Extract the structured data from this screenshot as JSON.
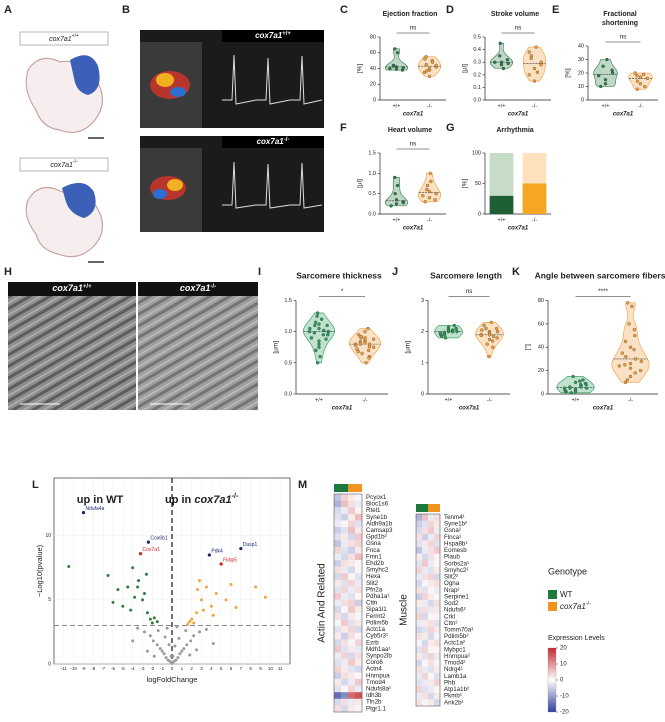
{
  "figure": {
    "panel_labels": [
      "A",
      "B",
      "C",
      "D",
      "E",
      "F",
      "G",
      "H",
      "I",
      "J",
      "K",
      "L",
      "M"
    ],
    "genotypes": [
      {
        "gene": "cox7a1",
        "sup": "+/+"
      },
      {
        "gene": "cox7a1",
        "sup": "-/-"
      }
    ],
    "heatmap_legend": {
      "title": "Genotype",
      "items": [
        {
          "name": "WT",
          "color": "#1e7a3c"
        },
        {
          "name": {
            "gene": "cox7a1",
            "sup": "-/-"
          },
          "color": "#f0941f"
        }
      ],
      "colorbar": {
        "title": "Expression Levels",
        "lim": [
          -20,
          20
        ],
        "ticks": [
          20,
          10,
          0,
          -10,
          -20
        ]
      }
    }
  },
  "chart_data": [
    {
      "type": "violin",
      "title": "Ejection fraction",
      "ylabel": "[%]",
      "xlabel": "cox7a1",
      "annotation": "ns",
      "categories": [
        "+/+",
        "-/-"
      ],
      "ylim": [
        0,
        80
      ],
      "yticks": [
        0,
        20,
        40,
        60,
        80
      ],
      "groups": [
        {
          "color": "#2a7a45",
          "values": [
            40,
            42,
            38,
            44,
            60,
            65,
            39,
            41,
            43
          ]
        },
        {
          "color": "#f29d38",
          "values": [
            35,
            38,
            42,
            45,
            50,
            55,
            40,
            44,
            37,
            48,
            52,
            30
          ]
        }
      ]
    },
    {
      "type": "violin",
      "title": "Stroke volume",
      "ylabel": "[µl]",
      "xlabel": "cox7a1",
      "annotation": "ns",
      "categories": [
        "+/+",
        "-/-"
      ],
      "ylim": [
        0,
        0.5
      ],
      "yticks": [
        {
          "value": 0,
          "label": "0.0"
        },
        0.1,
        0.2,
        0.3,
        0.4,
        0.5
      ],
      "groups": [
        {
          "color": "#2a7a45",
          "values": [
            0.3,
            0.28,
            0.32,
            0.35,
            0.25,
            0.45,
            0.3,
            0.29
          ]
        },
        {
          "color": "#f29d38",
          "values": [
            0.2,
            0.25,
            0.3,
            0.35,
            0.42,
            0.38,
            0.15,
            0.28,
            0.33,
            0.22
          ]
        }
      ]
    },
    {
      "type": "violin",
      "title": [
        "Fractional",
        "shortening"
      ],
      "ylabel": "[%]",
      "xlabel": "cox7a1",
      "annotation": "ns",
      "categories": [
        "+/+",
        "-/-"
      ],
      "ylim": [
        0,
        40
      ],
      "yticks": [
        0,
        10,
        20,
        30,
        40
      ],
      "groups": [
        {
          "color": "#2a7a45",
          "values": [
            10,
            15,
            20,
            25,
            30,
            18,
            12,
            22
          ]
        },
        {
          "color": "#f29d38",
          "values": [
            8,
            12,
            16,
            18,
            19,
            20,
            17,
            10,
            14
          ]
        }
      ]
    },
    {
      "type": "violin",
      "title": "Heart volume",
      "ylabel": "[µl]",
      "xlabel": "cox7a1",
      "annotation": "ns",
      "categories": [
        "+/+",
        "-/-"
      ],
      "ylim": [
        0,
        1.5
      ],
      "yticks": [
        {
          "value": 0,
          "label": "0.0"
        },
        0.5,
        {
          "value": 1,
          "label": "1.0"
        },
        1.5
      ],
      "groups": [
        {
          "color": "#2a7a45",
          "values": [
            0.2,
            0.25,
            0.3,
            0.5,
            0.7,
            0.9,
            0.35,
            0.28
          ]
        },
        {
          "color": "#f29d38",
          "values": [
            0.3,
            0.4,
            0.5,
            0.6,
            0.8,
            0.45,
            0.55,
            0.35,
            0.7,
            1.0
          ]
        }
      ]
    },
    {
      "type": "stacked_bar",
      "title": "Arrhythmia",
      "ylabel": "[%]",
      "xlabel": "cox7a1",
      "categories": [
        "+/+",
        "-/-"
      ],
      "ylim": [
        0,
        100
      ],
      "yticks": [
        0,
        50,
        100
      ],
      "series": [
        {
          "colors": [
            "#1f5f36",
            "#f5a623"
          ],
          "values": [
            30,
            50
          ]
        },
        {
          "colors": [
            "#c6dcc6",
            "#fde2bd"
          ],
          "values": [
            70,
            50
          ]
        }
      ]
    },
    {
      "type": "violin",
      "title": "Sarcomere thickness",
      "ylabel": "[µm]",
      "xlabel": "cox7a1",
      "annotation": "*",
      "categories": [
        "+/+",
        "-/-"
      ],
      "ylim": [
        0,
        1.5
      ],
      "yticks": [
        {
          "value": 0,
          "label": "0.0"
        },
        0.5,
        {
          "value": 1,
          "label": "1.0"
        },
        1.5
      ],
      "groups": [
        {
          "color": "#2a9a5a",
          "values": [
            1.0,
            1.05,
            0.95,
            1.1,
            1.2,
            0.9,
            0.85,
            1.0,
            1.15,
            0.6,
            0.5,
            0.75,
            1.0,
            1.3,
            0.95,
            1.05,
            0.8,
            1.1,
            0.98,
            1.02,
            0.7,
            1.12,
            0.88,
            1.25
          ]
        },
        {
          "color": "#f29d38",
          "values": [
            0.8,
            0.85,
            0.75,
            0.9,
            0.7,
            0.95,
            1.0,
            0.6,
            0.65,
            0.8,
            0.78,
            0.82,
            0.88,
            0.92,
            0.5,
            0.72,
            0.86,
            1.05,
            0.84,
            0.76,
            0.68,
            0.9,
            0.58,
            0.8
          ]
        }
      ]
    },
    {
      "type": "violin",
      "title": "Sarcomere length",
      "ylabel": "[µm]",
      "xlabel": "cox7a1",
      "annotation": "ns",
      "categories": [
        "+/+",
        "-/-"
      ],
      "ylim": [
        0,
        3
      ],
      "yticks": [
        0,
        1,
        2,
        3
      ],
      "groups": [
        {
          "color": "#2a9a5a",
          "values": [
            1.9,
            2.0,
            2.1,
            1.95,
            2.05,
            1.85,
            2.15,
            2.0,
            1.98,
            2.02,
            1.92,
            2.08,
            2.2,
            1.8,
            2.0,
            1.96,
            2.04,
            2.1,
            1.9,
            2.0
          ]
        },
        {
          "color": "#f29d38",
          "values": [
            1.9,
            2.0,
            1.8,
            2.1,
            1.7,
            2.2,
            1.95,
            1.5,
            1.2,
            1.85,
            2.05,
            1.9,
            2.0,
            1.6,
            2.3,
            1.88,
            1.75,
            2.1
          ]
        }
      ]
    },
    {
      "type": "violin",
      "title": "Angle between sarcomere fibers",
      "ylabel": "[°]",
      "xlabel": "cox7a1",
      "annotation": "****",
      "categories": [
        "+/+",
        "-/-"
      ],
      "ylim": [
        0,
        80
      ],
      "yticks": [
        0,
        20,
        40,
        60,
        80
      ],
      "groups": [
        {
          "color": "#2a9a5a",
          "values": [
            2,
            4,
            5,
            6,
            8,
            3,
            10,
            12,
            1,
            7,
            5,
            4,
            9,
            15,
            6,
            3,
            2,
            8,
            5,
            11
          ]
        },
        {
          "color": "#f29d38",
          "values": [
            10,
            15,
            20,
            25,
            30,
            35,
            40,
            50,
            60,
            75,
            78,
            22,
            28,
            32,
            18,
            45,
            26,
            55,
            12,
            38,
            24
          ]
        }
      ]
    },
    {
      "type": "scatter",
      "xlabel": "logFoldChange",
      "ylabel": "−Log10(pvalue)",
      "grid": true,
      "up_labels": [
        "up in WT",
        {
          "prefix": "up in ",
          "gene": "cox7a1",
          "sup": "-/-"
        }
      ],
      "xlim": [
        -12,
        12
      ],
      "xticks": [
        -11,
        -10,
        -9,
        -8,
        -7,
        -6,
        -5,
        -4,
        -3,
        -2,
        -1,
        0,
        1,
        2,
        3,
        4,
        5,
        6,
        7,
        8,
        9,
        10,
        11
      ],
      "ylim": [
        0,
        14.5
      ],
      "yticks": [
        0,
        5,
        10
      ],
      "vline": 0,
      "hline": 3,
      "series": [
        {
          "color": "#9a9a9a",
          "x": [
            -2.8,
            -2.2,
            -1.9,
            -1.5,
            -1.2,
            -1.0,
            -0.8,
            -0.6,
            -0.4,
            -0.2,
            0,
            0.2,
            0.4,
            0.6,
            0.8,
            1.0,
            1.2,
            1.5,
            1.9,
            2.2,
            2.8,
            -3.5,
            3.5,
            -0.3,
            0.3,
            -1.4,
            1.4,
            -2.5,
            2.5,
            -0.1,
            0.1,
            -0.7,
            0.7,
            -1.8,
            1.8,
            -4,
            4.2,
            -0.5,
            0.5,
            0
          ],
          "y": [
            2.5,
            2.2,
            1.8,
            1.5,
            1.2,
            1.0,
            0.8,
            0.5,
            0.3,
            0.2,
            0.1,
            0.2,
            0.3,
            0.5,
            0.8,
            1.0,
            1.2,
            1.5,
            1.8,
            2.2,
            2.5,
            2.8,
            2.7,
            1.5,
            1.4,
            2.6,
            2.6,
            1.0,
            1.1,
            0.6,
            0.6,
            2.1,
            2.0,
            0.6,
            0.7,
            1.8,
            1.6,
            2.8,
            2.9,
            0.05
          ]
        },
        {
          "color": "#2e7d3e",
          "x": [
            -2.5,
            -3,
            -3.5,
            -4,
            -2.2,
            -2.8,
            -3.2,
            -4.5,
            -5,
            -2,
            -1.8,
            -3.8,
            -2.6,
            -4.2,
            -3.4,
            -2.4,
            -5.5,
            -1.5,
            -6,
            -9,
            -10.5,
            -6.5
          ],
          "y": [
            4,
            5,
            6,
            7.5,
            3.5,
            5.5,
            8.6,
            6,
            4.5,
            3.2,
            3.6,
            5.2,
            7,
            4.2,
            6.5,
            9.5,
            5.8,
            3.3,
            4.8,
            11.8,
            7.6,
            6.9
          ]
        },
        {
          "color": "#f4a23a",
          "x": [
            2,
            2.5,
            3,
            3.5,
            4,
            4.5,
            2.2,
            2.8,
            3.2,
            5,
            5.5,
            6,
            1.8,
            3.8,
            4.2,
            2.6,
            6.5,
            7,
            1.6,
            8.5,
            9.5
          ],
          "y": [
            3.5,
            4,
            5,
            6,
            4.5,
            5.5,
            3.2,
            6.5,
            4.2,
            7.8,
            5,
            6.2,
            3.3,
            8.5,
            3.8,
            5.8,
            4.4,
            9,
            3.1,
            6,
            5.2
          ]
        }
      ],
      "labels": [
        {
          "text": "Ndufa4a",
          "x": -9,
          "y": 11.8,
          "color": "#1a2a6a"
        },
        {
          "text": "Cox7a1",
          "x": -3.2,
          "y": 8.6,
          "color": "#d42020"
        },
        {
          "text": "Cox6b1",
          "x": -2.4,
          "y": 9.5,
          "color": "#1a2a6a"
        },
        {
          "text": "Dusp1",
          "x": 7,
          "y": 9,
          "color": "#1a2a6a"
        },
        {
          "text": "Pdk4",
          "x": 3.8,
          "y": 8.5,
          "color": "#1a2a6a"
        },
        {
          "text": "Fkbp5",
          "x": 5,
          "y": 7.8,
          "color": "#d42020"
        }
      ]
    },
    {
      "type": "heatmap",
      "group_label": "Actin And Related",
      "row_labels": [
        "Pcyox1",
        "Bloc1s6",
        "Rtel1",
        "Syne1b",
        "Aldh9a1b",
        "Camsap3",
        "Gpd1b²",
        "Gsna",
        "Fnca",
        "Fmn1",
        "Ehd2b",
        "Smyhc2",
        "Hexa",
        "Slit2",
        "Pfn2a",
        "Pdha1a¹",
        "Cttn",
        "Sipa1l1",
        "Fermt2",
        "Pdlim5b",
        "Actc1a",
        "Cyb5r3¹",
        "Ezrb",
        "Mdh1aa¹",
        "Synpo2lb",
        "Coro6",
        "Actn4",
        "Hnrnpua",
        "Tmod4",
        "Ndufs8a¹",
        "Idh3b",
        "Tln2b",
        "Ptgr1.1"
      ],
      "values": [
        [
          -6,
          4,
          2,
          -1
        ],
        [
          -8,
          6,
          3,
          -2
        ],
        [
          -4,
          -2,
          5,
          1
        ],
        [
          -3,
          -5,
          2,
          6
        ],
        [
          -2,
          1,
          4,
          -3
        ],
        [
          -5,
          -3,
          6,
          2
        ],
        [
          -3,
          2,
          -4,
          5
        ],
        [
          -6,
          -2,
          3,
          4
        ],
        [
          4,
          -3,
          -5,
          2
        ],
        [
          -2,
          -4,
          3,
          6
        ],
        [
          -5,
          3,
          2,
          -1
        ],
        [
          3,
          -2,
          -4,
          1
        ],
        [
          -4,
          5,
          1,
          -3
        ],
        [
          2,
          -3,
          4,
          -2
        ],
        [
          -3,
          4,
          -2,
          3
        ],
        [
          5,
          -2,
          -3,
          1
        ],
        [
          -2,
          3,
          4,
          -5
        ],
        [
          -4,
          -1,
          5,
          2
        ],
        [
          3,
          -4,
          2,
          -1
        ],
        [
          -1,
          5,
          -3,
          2
        ],
        [
          -3,
          2,
          4,
          -4
        ],
        [
          2,
          -5,
          3,
          1
        ],
        [
          -4,
          3,
          -1,
          4
        ],
        [
          5,
          -3,
          2,
          -2
        ],
        [
          -2,
          4,
          -4,
          3
        ],
        [
          -3,
          -2,
          5,
          2
        ],
        [
          4,
          2,
          -3,
          -4
        ],
        [
          -5,
          3,
          2,
          1
        ],
        [
          2,
          -4,
          -2,
          5
        ],
        [
          -3,
          1,
          4,
          -2
        ],
        [
          -15,
          -12,
          14,
          16
        ],
        [
          -4,
          3,
          -2,
          2
        ],
        [
          3,
          -4,
          2,
          -1
        ]
      ]
    },
    {
      "type": "heatmap",
      "group_label": "Muscle",
      "row_labels": [
        "Tenm4¹",
        "Syne1b²",
        "Gsna²",
        "Flnca¹",
        "Hspa8b¹",
        "Eomesb",
        "Plaub",
        "Sorbs2a¹",
        "Smyhc2²",
        "Slit2²",
        "Ogna",
        "Nrap²",
        "Serpine1",
        "Sod2",
        "Ndufs6²",
        "Crkl",
        "Cttn²",
        "Tomm70a¹",
        "Pdlim5b²",
        "Actc1a²",
        "Mybpc1",
        "Hnrnpua²",
        "Tmod4²",
        "Ndrg4¹",
        "Lamb1a",
        "Phb",
        "Atp1a1b²",
        "Pkmb¹",
        "Ank2b¹"
      ],
      "values": [
        [
          -8,
          6,
          -2,
          3
        ],
        [
          -5,
          -3,
          4,
          2
        ],
        [
          -4,
          3,
          5,
          -2
        ],
        [
          3,
          -5,
          -2,
          4
        ],
        [
          -3,
          2,
          4,
          -3
        ],
        [
          -6,
          -2,
          3,
          5
        ],
        [
          2,
          -4,
          3,
          -1
        ],
        [
          -3,
          5,
          -2,
          1
        ],
        [
          4,
          -2,
          -3,
          2
        ],
        [
          -2,
          3,
          4,
          -4
        ],
        [
          -4,
          -1,
          2,
          3
        ],
        [
          3,
          -3,
          1,
          -2
        ],
        [
          -5,
          4,
          2,
          -1
        ],
        [
          2,
          -2,
          -4,
          3
        ],
        [
          -3,
          3,
          -2,
          2
        ],
        [
          4,
          -4,
          1,
          -1
        ],
        [
          -2,
          2,
          3,
          -3
        ],
        [
          -4,
          -3,
          4,
          2
        ],
        [
          3,
          2,
          -4,
          -1
        ],
        [
          -1,
          -4,
          2,
          3
        ],
        [
          -3,
          4,
          -1,
          1
        ],
        [
          2,
          -3,
          4,
          -2
        ],
        [
          -4,
          1,
          3,
          -1
        ],
        [
          3,
          -2,
          -3,
          2
        ],
        [
          -2,
          4,
          1,
          -3
        ],
        [
          -3,
          -2,
          2,
          4
        ],
        [
          4,
          -3,
          -2,
          1
        ],
        [
          -2,
          3,
          -4,
          2
        ],
        [
          3,
          -1,
          2,
          -4
        ]
      ]
    }
  ]
}
